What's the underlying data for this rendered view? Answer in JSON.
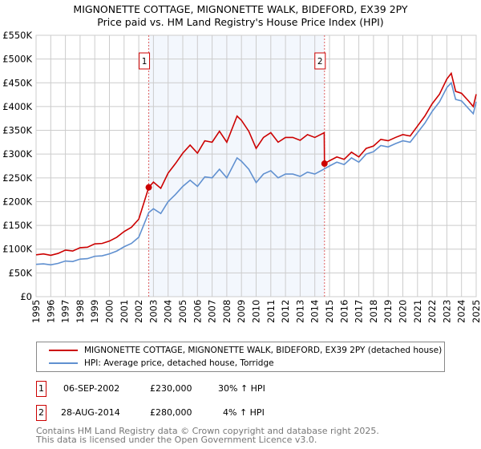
{
  "title": "MIGNONETTE COTTAGE, MIGNONETTE WALK, BIDEFORD, EX39 2PY",
  "subtitle": "Price paid vs. HM Land Registry's House Price Index (HPI)",
  "chart_data": {
    "type": "line",
    "title": "MIGNONETTE COTTAGE, MIGNONETTE WALK, BIDEFORD, EX39 2PY",
    "subtitle": "Price paid vs. HM Land Registry's House Price Index (HPI)",
    "xlim": [
      1995,
      2025
    ],
    "ylim": [
      0,
      550000
    ],
    "grid": true,
    "x_ticks": [
      "1995",
      "1996",
      "1997",
      "1998",
      "1999",
      "2000",
      "2001",
      "2002",
      "2003",
      "2004",
      "2005",
      "2006",
      "2007",
      "2008",
      "2009",
      "2010",
      "2011",
      "2012",
      "2013",
      "2014",
      "2015",
      "2016",
      "2017",
      "2018",
      "2019",
      "2020",
      "2021",
      "2022",
      "2023",
      "2024",
      "2025"
    ],
    "y_ticks": [
      {
        "v": 0,
        "l": "£0"
      },
      {
        "v": 50000,
        "l": "£50K"
      },
      {
        "v": 100000,
        "l": "£100K"
      },
      {
        "v": 150000,
        "l": "£150K"
      },
      {
        "v": 200000,
        "l": "£200K"
      },
      {
        "v": 250000,
        "l": "£250K"
      },
      {
        "v": 300000,
        "l": "£300K"
      },
      {
        "v": 350000,
        "l": "£350K"
      },
      {
        "v": 400000,
        "l": "£400K"
      },
      {
        "v": 450000,
        "l": "£450K"
      },
      {
        "v": 500000,
        "l": "£500K"
      },
      {
        "v": 550000,
        "l": "£550K"
      }
    ],
    "series": [
      {
        "name": "MIGNONETTE COTTAGE, MIGNONETTE WALK, BIDEFORD, EX39 2PY (detached house)",
        "color": "#cc0000",
        "x": [
          1995,
          1995.5,
          1996,
          1996.5,
          1997,
          1997.5,
          1998,
          1998.5,
          1999,
          1999.5,
          2000,
          2000.5,
          2001,
          2001.5,
          2002,
          2002.68,
          2003,
          2003.5,
          2004,
          2004.5,
          2005,
          2005.5,
          2006,
          2006.5,
          2007,
          2007.5,
          2008,
          2008.7,
          2009,
          2009.5,
          2010,
          2010.5,
          2011,
          2011.5,
          2012,
          2012.5,
          2013,
          2013.5,
          2014,
          2014.64,
          2014.66,
          2015,
          2015.5,
          2016,
          2016.5,
          2017,
          2017.5,
          2018,
          2018.5,
          2019,
          2019.5,
          2020,
          2020.5,
          2021,
          2021.5,
          2022,
          2022.5,
          2023,
          2023.3,
          2023.6,
          2024,
          2024.5,
          2024.8,
          2025
        ],
        "values": [
          88,
          90,
          87,
          91,
          98,
          96,
          103,
          104,
          111,
          112,
          117,
          125,
          137,
          146,
          163,
          230,
          241,
          228,
          260,
          280,
          302,
          319,
          302,
          328,
          325,
          348,
          325,
          380,
          371,
          348,
          312,
          335,
          345,
          325,
          335,
          335,
          329,
          341,
          335,
          345,
          280,
          286,
          294,
          289,
          304,
          294,
          312,
          317,
          331,
          328,
          335,
          341,
          338,
          359,
          380,
          406,
          426,
          458,
          470,
          432,
          428,
          411,
          400,
          426
        ],
        "unit": "£K"
      },
      {
        "name": "HPI: Average price, detached house, Torridge",
        "color": "#6090d0",
        "x": [
          1995,
          1995.5,
          1996,
          1996.5,
          1997,
          1997.5,
          1998,
          1998.5,
          1999,
          1999.5,
          2000,
          2000.5,
          2001,
          2001.5,
          2002,
          2002.68,
          2003,
          2003.5,
          2004,
          2004.5,
          2005,
          2005.5,
          2006,
          2006.5,
          2007,
          2007.5,
          2008,
          2008.7,
          2009,
          2009.5,
          2010,
          2010.5,
          2011,
          2011.5,
          2012,
          2012.5,
          2013,
          2013.5,
          2014,
          2014.66,
          2015,
          2015.5,
          2016,
          2016.5,
          2017,
          2017.5,
          2018,
          2018.5,
          2019,
          2019.5,
          2020,
          2020.5,
          2021,
          2021.5,
          2022,
          2022.5,
          2023,
          2023.3,
          2023.6,
          2024,
          2024.5,
          2024.8,
          2025
        ],
        "values": [
          68,
          69,
          67,
          70,
          75,
          74,
          79,
          80,
          85,
          86,
          90,
          96,
          105,
          112,
          125,
          177,
          185,
          175,
          200,
          215,
          232,
          245,
          232,
          252,
          250,
          268,
          250,
          292,
          285,
          268,
          240,
          258,
          265,
          250,
          258,
          258,
          253,
          262,
          258,
          269,
          275,
          283,
          278,
          292,
          283,
          300,
          305,
          318,
          315,
          322,
          328,
          325,
          345,
          365,
          390,
          410,
          440,
          450,
          415,
          412,
          395,
          385,
          410
        ],
        "unit": "£K"
      }
    ],
    "sales": [
      {
        "label": "1",
        "x": 2002.68,
        "value": 230
      },
      {
        "label": "2",
        "x": 2014.66,
        "value": 280
      }
    ],
    "legend_placement": "below"
  },
  "legend": {
    "property": "MIGNONETTE COTTAGE, MIGNONETTE WALK, BIDEFORD, EX39 2PY (detached house)",
    "hpi": "HPI: Average price, detached house, Torridge"
  },
  "transactions": [
    {
      "num": "1",
      "date": "06-SEP-2002",
      "price": "£230,000",
      "hpi": "30% ↑ HPI"
    },
    {
      "num": "2",
      "date": "28-AUG-2014",
      "price": "£280,000",
      "hpi": "4% ↑ HPI"
    }
  ],
  "footer": {
    "line1": "Contains HM Land Registry data © Crown copyright and database right 2025.",
    "line2": "This data is licensed under the Open Government Licence v3.0."
  }
}
